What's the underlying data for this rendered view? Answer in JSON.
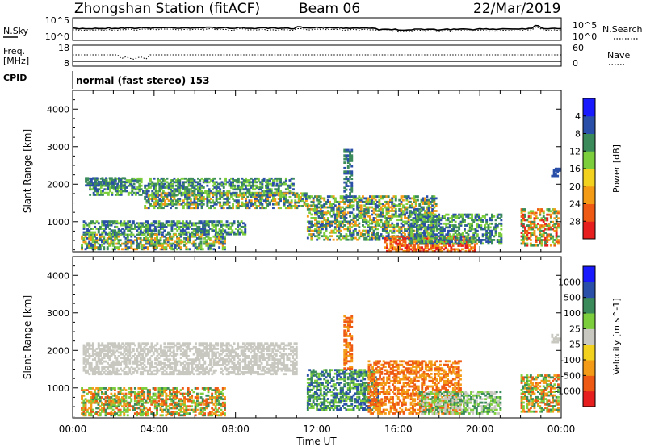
{
  "header": {
    "station": "Zhongshan Station (fitACF)",
    "beam": "Beam 06",
    "date": "22/Mar/2019",
    "mode": "normal (fast stereo) 153"
  },
  "side_labels": {
    "nsky": "N.Sky",
    "freq_line1": "Freq.",
    "freq_line2": "[MHz]",
    "cpid": "CPID",
    "nsearch": "N.Search",
    "nave": "Nave"
  },
  "noise_panel": {
    "left_ticks": [
      "10^5",
      "10^0"
    ],
    "right_ticks": [
      "10^5",
      "10^0"
    ]
  },
  "freq_panel": {
    "left_ticks": [
      "18",
      "8"
    ],
    "right_ticks": [
      "60",
      "0"
    ]
  },
  "chart_data": [
    {
      "type": "heatmap",
      "name": "power",
      "ylabel": "Slant Range [km]",
      "xlabel": "",
      "x_tick_labels": [
        "00:00",
        "04:00",
        "08:00",
        "12:00",
        "16:00",
        "20:00",
        "00:00"
      ],
      "y_tick_labels": [
        "1000",
        "2000",
        "3000",
        "4000"
      ],
      "ylim": [
        200,
        4500
      ],
      "colorbar": {
        "label": "Power [dB]",
        "tick_labels": [
          "4",
          "8",
          "12",
          "16",
          "20",
          "24",
          "28"
        ],
        "colors": [
          "#1a1aff",
          "#2a4fa8",
          "#3a8a5a",
          "#7cce3c",
          "#f2d21e",
          "#f39b16",
          "#ee5a14",
          "#e61e1e"
        ]
      },
      "colors_by_level": [
        "#2a4fa8",
        "#3a8a5a",
        "#7cce3c",
        "#f39b16",
        "#ee5a14",
        "#e61e1e"
      ],
      "regions": [
        {
          "t": [
            0.8,
            10.8
          ],
          "r": [
            1700,
            2150
          ],
          "lv": [
            0,
            1,
            2
          ]
        },
        {
          "t": [
            0.6,
            2.5
          ],
          "r": [
            1950,
            2150
          ],
          "lv": [
            0,
            1
          ]
        },
        {
          "t": [
            3.5,
            11.5
          ],
          "r": [
            1350,
            1750
          ],
          "lv": [
            0,
            1,
            2,
            3
          ]
        },
        {
          "t": [
            0.5,
            8.5
          ],
          "r": [
            650,
            1000
          ],
          "lv": [
            0,
            1,
            2
          ]
        },
        {
          "t": [
            0.4,
            7.5
          ],
          "r": [
            250,
            650
          ],
          "lv": [
            0,
            1,
            2,
            3
          ]
        },
        {
          "t": [
            11.5,
            17.8
          ],
          "r": [
            500,
            1700
          ],
          "lv": [
            0,
            1,
            2,
            3
          ]
        },
        {
          "t": [
            15.3,
            19.8
          ],
          "r": [
            200,
            600
          ],
          "lv": [
            3,
            4,
            5
          ]
        },
        {
          "t": [
            16.5,
            21.0
          ],
          "r": [
            400,
            1200
          ],
          "lv": [
            0,
            1,
            2
          ]
        },
        {
          "t": [
            22.0,
            24.0
          ],
          "r": [
            350,
            1350
          ],
          "lv": [
            1,
            2,
            3,
            4,
            5
          ]
        },
        {
          "t": [
            13.3,
            13.7
          ],
          "r": [
            1500,
            2900
          ],
          "lv": [
            0,
            1
          ]
        },
        {
          "t": [
            23.5,
            24.0
          ],
          "r": [
            2200,
            2400
          ],
          "lv": [
            0
          ]
        }
      ]
    },
    {
      "type": "heatmap",
      "name": "velocity",
      "ylabel": "Slant Range [km]",
      "xlabel": "Time UT",
      "x_tick_labels": [
        "00:00",
        "04:00",
        "08:00",
        "12:00",
        "16:00",
        "20:00",
        "00:00"
      ],
      "y_tick_labels": [
        "1000",
        "2000",
        "3000",
        "4000"
      ],
      "ylim": [
        200,
        4500
      ],
      "colorbar": {
        "label": "Velocity [m s^-1]",
        "tick_labels": [
          "1000",
          "500",
          "100",
          "25",
          "-25",
          "-100",
          "-500",
          "-1000"
        ],
        "colors": [
          "#1a1aff",
          "#2a4fa8",
          "#3a8a5a",
          "#7cce3c",
          "#c8c8c0",
          "#f2d21e",
          "#f39b16",
          "#ee5a14",
          "#e61e1e"
        ]
      },
      "colors_by_level": [
        "#2a4fa8",
        "#3a8a5a",
        "#7cce3c",
        "#c8c8c0",
        "#f39b16",
        "#ee5a14"
      ],
      "regions": [
        {
          "t": [
            0.5,
            11.0
          ],
          "r": [
            1350,
            2200
          ],
          "lv": [
            3
          ]
        },
        {
          "t": [
            0.4,
            7.5
          ],
          "r": [
            250,
            1000
          ],
          "lv": [
            4,
            5,
            1,
            2
          ]
        },
        {
          "t": [
            11.5,
            15.0
          ],
          "r": [
            400,
            1500
          ],
          "lv": [
            0,
            1,
            2
          ]
        },
        {
          "t": [
            14.5,
            19.0
          ],
          "r": [
            300,
            1700
          ],
          "lv": [
            4,
            5
          ]
        },
        {
          "t": [
            17.0,
            21.0
          ],
          "r": [
            300,
            900
          ],
          "lv": [
            2,
            3,
            1
          ]
        },
        {
          "t": [
            22.0,
            24.0
          ],
          "r": [
            350,
            1350
          ],
          "lv": [
            1,
            2,
            4,
            5
          ]
        },
        {
          "t": [
            13.3,
            13.7
          ],
          "r": [
            1500,
            2900
          ],
          "lv": [
            4,
            5
          ]
        },
        {
          "t": [
            23.5,
            24.0
          ],
          "r": [
            2200,
            2400
          ],
          "lv": [
            3
          ]
        }
      ]
    }
  ]
}
